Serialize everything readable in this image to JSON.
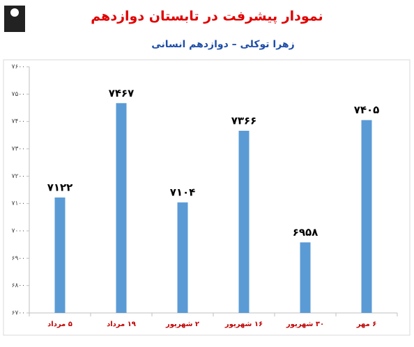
{
  "chart_data": {
    "type": "bar",
    "title": "نمودار پیشرفت در تابستان دوازدهم",
    "subtitle": "زهرا توکلی – دوازدهم انسانی",
    "categories": [
      "۵ مرداد",
      "۱۹ مرداد",
      "۲ شهریور",
      "۱۶ شهریور",
      "۳۰ شهریور",
      "۶ مهر"
    ],
    "values": [
      7122,
      7467,
      7104,
      7366,
      6958,
      7405
    ],
    "value_labels": [
      "۷۱۲۲",
      "۷۴۶۷",
      "۷۱۰۴",
      "۷۳۶۶",
      "۶۹۵۸",
      "۷۴۰۵"
    ],
    "color": "#5b9bd5",
    "ylim": [
      6700,
      7600
    ],
    "yticks": [
      {
        "value": 6700,
        "label": "۶۷۰۰"
      },
      {
        "value": 6800,
        "label": "۶۸۰۰"
      },
      {
        "value": 6900,
        "label": "۶۹۰۰"
      },
      {
        "value": 7000,
        "label": "۷۰۰۰"
      },
      {
        "value": 7100,
        "label": "۷۱۰۰"
      },
      {
        "value": 7200,
        "label": "۷۲۰۰"
      },
      {
        "value": 7300,
        "label": "۷۳۰۰"
      },
      {
        "value": 7400,
        "label": "۷۴۰۰"
      },
      {
        "value": 7500,
        "label": "۷۵۰۰"
      },
      {
        "value": 7600,
        "label": "۷۶۰۰"
      }
    ],
    "grid": false
  }
}
